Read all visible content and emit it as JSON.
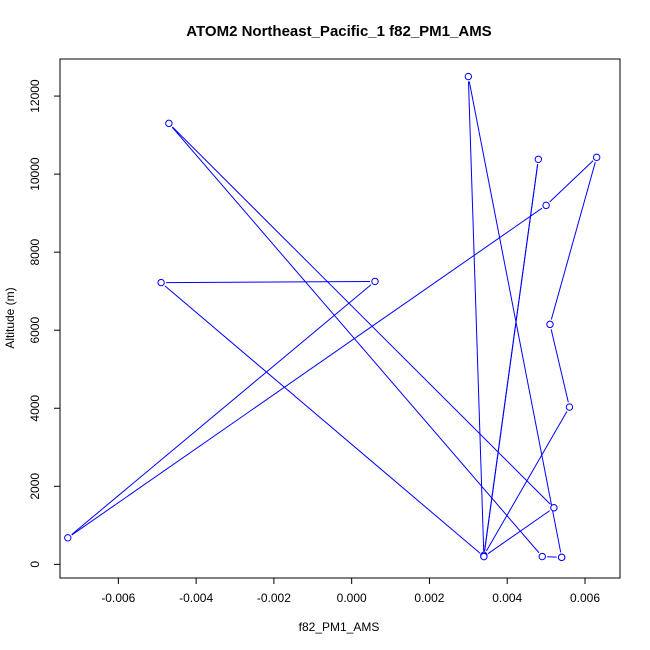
{
  "chart_data": {
    "type": "line",
    "title": "ATOM2 Northeast_Pacific_1 f82_PM1_AMS",
    "xlabel": "f82_PM1_AMS",
    "ylabel": "Altitude (m)",
    "xlim": [
      -0.0075,
      0.0069
    ],
    "ylim": [
      -350,
      12950
    ],
    "x_ticks": [
      -0.006,
      -0.004,
      -0.002,
      0.0,
      0.002,
      0.004,
      0.006
    ],
    "x_tick_labels": [
      "-0.006",
      "-0.004",
      "-0.002",
      "0.000",
      "0.002",
      "0.004",
      "0.006"
    ],
    "y_ticks": [
      0,
      2000,
      4000,
      6000,
      8000,
      10000,
      12000
    ],
    "y_tick_labels": [
      "0",
      "2000",
      "4000",
      "6000",
      "8000",
      "10000",
      "12000"
    ],
    "grid": false,
    "color": "#0000ff",
    "marker": "open-circle",
    "series": [
      {
        "x": [
          0.0054,
          0.0049,
          -0.0047,
          0.0052,
          0.0034,
          0.0048,
          0.0034,
          0.0056,
          0.0051,
          0.0063,
          0.005,
          -0.0073,
          0.0006,
          -0.0049,
          0.0034,
          0.003,
          0.0054
        ],
        "y": [
          180,
          200,
          11300,
          1450,
          200,
          10380,
          230,
          4030,
          6150,
          10430,
          9200,
          680,
          7250,
          7220,
          200,
          12500,
          180
        ]
      }
    ]
  }
}
